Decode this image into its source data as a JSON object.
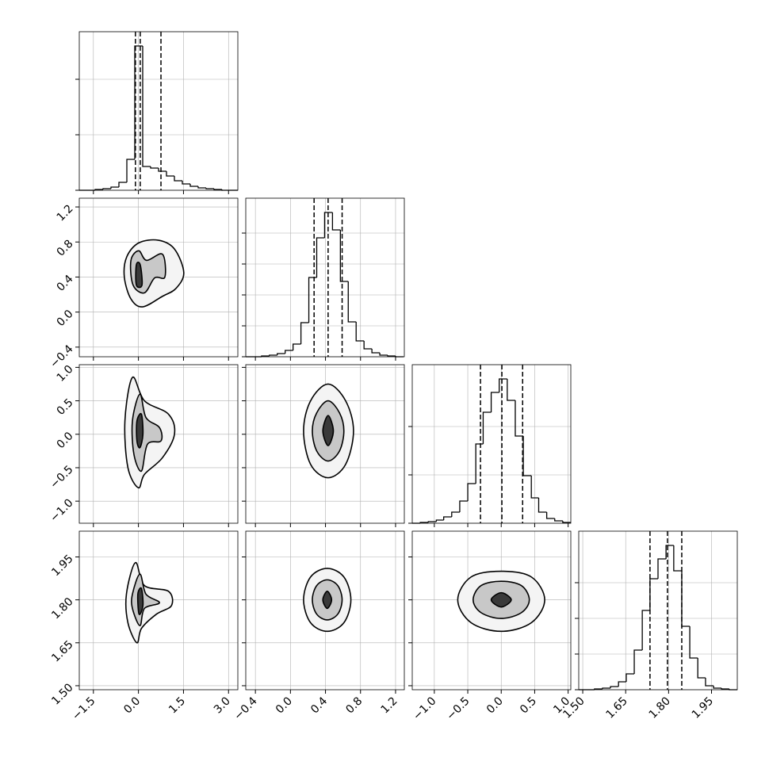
{
  "chart_data": {
    "type": "corner",
    "grid": true,
    "line_color": "#000000",
    "grid_color": "#b0b0b0",
    "contour_fills": [
      "#f4f4f4",
      "#c8c8c8",
      "#3a3a3a"
    ],
    "parameters": [
      {
        "lim": [
          -1.97,
          3.31
        ],
        "ticks": [
          {
            "value": -1.5,
            "label": "−1.5"
          },
          {
            "value": 0,
            "label": "0.0"
          },
          1.5,
          {
            "value": 3,
            "label": "3.0"
          }
        ],
        "bins": [
          -1.97,
          -1.706,
          -1.442,
          -1.178,
          -0.914,
          -0.65,
          -0.386,
          -0.122,
          0.142,
          0.406,
          0.67,
          0.934,
          1.198,
          1.462,
          1.726,
          1.99,
          2.254,
          2.518,
          2.782,
          3.046,
          3.31
        ],
        "counts": [
          0,
          0,
          1,
          2,
          4,
          10,
          39,
          182,
          30,
          28,
          24,
          18,
          12,
          8,
          5,
          3,
          2,
          1,
          0,
          0
        ],
        "hist_ylim": [
          0,
          200
        ],
        "hist_yticks": [
          0,
          70,
          140
        ],
        "quantiles": [
          -0.1,
          0.06,
          0.75
        ]
      },
      {
        "lim": [
          -0.51,
          1.3
        ],
        "ticks": [
          {
            "value": -0.4,
            "label": "−0.4"
          },
          {
            "value": 0,
            "label": "0.0"
          },
          0.4,
          0.8,
          1.2
        ],
        "bins": [
          -0.51,
          -0.42,
          -0.33,
          -0.24,
          -0.15,
          -0.06,
          0.03,
          0.12,
          0.21,
          0.3,
          0.39,
          0.48,
          0.57,
          0.66,
          0.75,
          0.84,
          0.93,
          1.02,
          1.11,
          1.2,
          1.29
        ],
        "counts": [
          0,
          0,
          1,
          2,
          4,
          8,
          16,
          43,
          100,
          150,
          182,
          160,
          95,
          44,
          20,
          10,
          5,
          2,
          1,
          0
        ],
        "hist_ylim": [
          0,
          200
        ],
        "hist_yticks": [
          0,
          39,
          78,
          117,
          156
        ],
        "quantiles": [
          0.27,
          0.43,
          0.59
        ]
      },
      {
        "lim": [
          -1.33,
          1.04
        ],
        "ticks": [
          {
            "value": -1,
            "label": "−1.0"
          },
          {
            "value": -0.5,
            "label": "−0.5"
          },
          {
            "value": 0,
            "label": "0.0"
          },
          0.5,
          {
            "value": 1,
            "label": "1.0"
          }
        ],
        "bins": [
          -1.33,
          -1.21,
          -1.09,
          -0.97,
          -0.86,
          -0.74,
          -0.62,
          -0.5,
          -0.38,
          -0.27,
          -0.15,
          -0.03,
          0.09,
          0.21,
          0.33,
          0.45,
          0.56,
          0.68,
          0.8,
          0.92,
          1.04
        ],
        "counts": [
          0,
          1,
          2,
          4,
          8,
          14,
          28,
          50,
          100,
          140,
          165,
          182,
          155,
          110,
          60,
          32,
          14,
          6,
          3,
          1
        ],
        "hist_ylim": [
          0,
          200
        ],
        "hist_yticks": [
          0,
          61,
          122
        ],
        "quantiles": [
          -0.31,
          0.01,
          0.32
        ]
      },
      {
        "lim": [
          1.486,
          2.04
        ],
        "ticks": [
          {
            "value": 1.5,
            "label": "1.50"
          },
          1.65,
          {
            "value": 1.8,
            "label": "1.80"
          },
          1.95
        ],
        "bins": [
          1.486,
          1.514,
          1.541,
          1.569,
          1.597,
          1.625,
          1.652,
          1.68,
          1.708,
          1.735,
          1.763,
          1.791,
          1.818,
          1.846,
          1.874,
          1.902,
          1.929,
          1.957,
          1.985,
          2.012,
          2.04
        ],
        "counts": [
          0,
          0,
          1,
          2,
          4,
          10,
          20,
          50,
          100,
          140,
          165,
          182,
          150,
          80,
          40,
          15,
          5,
          2,
          1,
          0
        ],
        "hist_ylim": [
          0,
          200
        ],
        "hist_yticks": [
          0,
          45,
          90,
          135
        ],
        "quantiles": [
          1.735,
          1.796,
          1.846
        ]
      }
    ],
    "pairs": [
      [
        {
          "contours": [
            {
              "x": [
                -0.39,
                0.01,
                0.67,
                1.2,
                1.51,
                1.25,
                0.8,
                0.14,
                -0.25,
                -0.47
              ],
              "y": [
                0.63,
                0.79,
                0.82,
                0.72,
                0.45,
                0.27,
                0.18,
                0.06,
                0.15,
                0.4
              ]
            },
            {
              "x": [
                -0.25,
                0.01,
                0.27,
                0.8,
                0.88,
                0.54,
                0.2,
                -0.18
              ],
              "y": [
                0.59,
                0.7,
                0.59,
                0.66,
                0.4,
                0.39,
                0.22,
                0.31
              ]
            },
            {
              "x": [
                -0.07,
                0.06,
                0.12,
                -0.07
              ],
              "y": [
                0.54,
                0.54,
                0.31,
                0.31
              ]
            }
          ]
        }
      ],
      [
        {
          "contours": [
            {
              "x": [
                -0.45,
                -0.2,
                0.2,
                1.0,
                1.2,
                0.8,
                0.2,
                0.0,
                -0.35
              ],
              "y": [
                0.2,
                0.85,
                0.5,
                0.3,
                0.0,
                -0.35,
                -0.6,
                -0.8,
                -0.5
              ]
            },
            {
              "x": [
                -0.2,
                0.05,
                0.25,
                0.7,
                0.75,
                0.3,
                0.1,
                -0.15
              ],
              "y": [
                0.2,
                0.6,
                0.25,
                0.1,
                -0.1,
                -0.15,
                -0.55,
                -0.3
              ]
            },
            {
              "x": [
                -0.05,
                0.1,
                0.15,
                0.05,
                -0.05
              ],
              "y": [
                0.2,
                0.3,
                0.0,
                -0.2,
                -0.1
              ]
            }
          ]
        },
        {
          "contours": [
            {
              "x": [
                0.43,
                0.63,
                0.72,
                0.63,
                0.43,
                0.23,
                0.15,
                0.23
              ],
              "y": [
                0.75,
                0.5,
                0.05,
                -0.45,
                -0.65,
                -0.45,
                0.05,
                0.5
              ]
            },
            {
              "x": [
                0.43,
                0.56,
                0.61,
                0.56,
                0.43,
                0.3,
                0.25,
                0.3
              ],
              "y": [
                0.5,
                0.32,
                0.05,
                -0.25,
                -0.4,
                -0.25,
                0.05,
                0.32
              ]
            },
            {
              "x": [
                0.43,
                0.49,
                0.43,
                0.37
              ],
              "y": [
                0.28,
                0.05,
                -0.17,
                0.05
              ]
            }
          ]
        }
      ],
      [
        {
          "contours": [
            {
              "x": [
                -0.4,
                -0.1,
                0.2,
                1.0,
                1.1,
                0.6,
                0.1,
                -0.05,
                -0.35
              ],
              "y": [
                1.82,
                1.93,
                1.85,
                1.83,
                1.78,
                1.75,
                1.7,
                1.65,
                1.72
              ]
            },
            {
              "x": [
                -0.2,
                0.05,
                0.25,
                0.7,
                0.2,
                0.05,
                -0.2
              ],
              "y": [
                1.82,
                1.89,
                1.82,
                1.79,
                1.77,
                1.71,
                1.77
              ]
            },
            {
              "x": [
                -0.02,
                0.1,
                0.15,
                0.02
              ],
              "y": [
                1.82,
                1.84,
                1.78,
                1.75
              ]
            }
          ]
        },
        {
          "contours": [
            {
              "x": [
                0.42,
                0.61,
                0.69,
                0.61,
                0.42,
                0.23,
                0.15,
                0.23
              ],
              "y": [
                1.91,
                1.88,
                1.8,
                1.72,
                1.69,
                1.72,
                1.8,
                1.88
              ]
            },
            {
              "x": [
                0.42,
                0.54,
                0.59,
                0.54,
                0.42,
                0.3,
                0.25,
                0.3
              ],
              "y": [
                1.87,
                1.85,
                1.8,
                1.75,
                1.73,
                1.75,
                1.8,
                1.85
              ]
            },
            {
              "x": [
                0.42,
                0.47,
                0.42,
                0.37
              ],
              "y": [
                1.83,
                1.8,
                1.77,
                1.8
              ]
            }
          ]
        },
        {
          "contours": [
            {
              "x": [
                0,
                0.45,
                0.65,
                0.45,
                0,
                -0.45,
                -0.65,
                -0.45
              ],
              "y": [
                1.9,
                1.88,
                1.8,
                1.72,
                1.69,
                1.72,
                1.8,
                1.88
              ]
            },
            {
              "x": [
                0,
                0.3,
                0.42,
                0.3,
                0,
                -0.3,
                -0.42,
                -0.3
              ],
              "y": [
                1.865,
                1.85,
                1.8,
                1.755,
                1.735,
                1.755,
                1.8,
                1.85
              ]
            },
            {
              "x": [
                0,
                0.15,
                0,
                -0.15
              ],
              "y": [
                1.825,
                1.8,
                1.775,
                1.8
              ]
            }
          ]
        }
      ]
    ]
  }
}
